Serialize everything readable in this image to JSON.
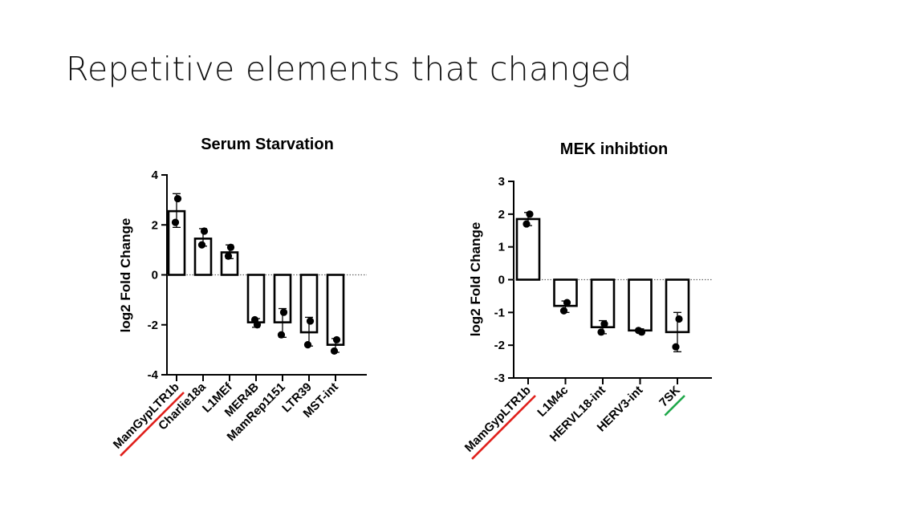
{
  "slide": {
    "title": "Repetitive elements that changed"
  },
  "chart_data": [
    {
      "type": "bar",
      "title": "Serum Starvation",
      "ylabel": "log2 Fold Change",
      "xlabel": "",
      "ylim": [
        -4,
        4
      ],
      "yticks": [
        4,
        2,
        0,
        -2,
        -4
      ],
      "tick_labels": [
        "4",
        "2",
        "0",
        "-2",
        "-4"
      ],
      "categories": [
        "MamGypLTR1b",
        "Charlie18a",
        "L1MEf",
        "MER4B",
        "MamRep1151",
        "LTR39",
        "MST-int"
      ],
      "values": [
        2.55,
        1.45,
        0.9,
        -1.9,
        -1.9,
        -2.3,
        -2.8
      ],
      "points": [
        [
          3.05,
          2.1
        ],
        [
          1.75,
          1.2
        ],
        [
          1.1,
          0.75
        ],
        [
          -2.0,
          -1.8
        ],
        [
          -1.5,
          -2.4
        ],
        [
          -1.85,
          -2.8
        ],
        [
          -2.6,
          -3.05
        ]
      ],
      "error": [
        [
          1.9,
          3.25
        ],
        [
          1.15,
          1.85
        ],
        [
          0.65,
          1.2
        ],
        [
          -2.1,
          -1.75
        ],
        [
          -2.5,
          -1.35
        ],
        [
          -2.85,
          -1.7
        ],
        [
          -3.1,
          -2.55
        ]
      ],
      "underlines": {
        "0": "#e0201b"
      },
      "grid": false
    },
    {
      "type": "bar",
      "title": "MEK inhibtion",
      "ylabel": "log2 Fold Change",
      "xlabel": "",
      "ylim": [
        -3,
        3
      ],
      "yticks": [
        3,
        2,
        1,
        0,
        -1,
        -2,
        -3
      ],
      "tick_labels": [
        "3",
        "2",
        "1",
        "0",
        "-1",
        "-2",
        "-3"
      ],
      "categories": [
        "MamGypLTR1b",
        "L1M4c",
        "HERVL18-int",
        "HERV3-int",
        "7SK"
      ],
      "values": [
        1.85,
        -0.8,
        -1.45,
        -1.55,
        -1.6
      ],
      "points": [
        [
          2.0,
          1.7
        ],
        [
          -0.7,
          -0.95
        ],
        [
          -1.35,
          -1.6
        ],
        [
          -1.6,
          -1.55
        ],
        [
          -1.2,
          -2.05
        ]
      ],
      "error": [
        [
          1.65,
          2.05
        ],
        [
          -1.0,
          -0.65
        ],
        [
          -1.65,
          -1.25
        ],
        [
          -1.6,
          -1.5
        ],
        [
          -2.2,
          -1.0
        ]
      ],
      "underlines": {
        "0": "#e0201b",
        "4": "#1fa84a"
      },
      "grid": false
    }
  ]
}
